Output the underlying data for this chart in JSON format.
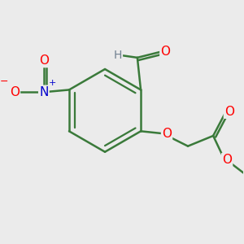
{
  "background_color": "#ebebeb",
  "bond_color": "#3a7a3a",
  "bond_width": 1.8,
  "atom_colors": {
    "O": "#ff0000",
    "N": "#0000cd",
    "H": "#708090"
  },
  "font_size": 10
}
